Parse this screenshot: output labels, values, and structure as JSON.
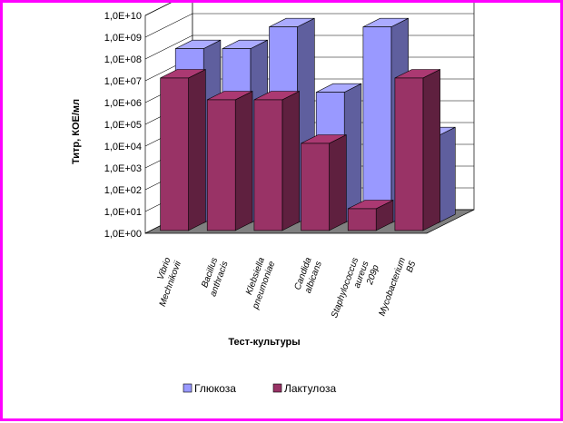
{
  "chart_data": {
    "type": "bar",
    "subtype": "3d-column-clustered",
    "title": "",
    "xlabel": "Тест-культуры",
    "ylabel": "Титр, КОЕ/мл",
    "yscale": "log",
    "ylim": [
      "1,0E+00",
      "1,0E+10"
    ],
    "yticks": [
      "1,0E+00",
      "1,0E+01",
      "1,0E+02",
      "1,0E+03",
      "1,0E+04",
      "1,0E+05",
      "1,0E+06",
      "1,0E+07",
      "1,0E+08",
      "1,0E+09",
      "1,0E+10"
    ],
    "categories": [
      [
        "Vibrio",
        "Mechnikovii"
      ],
      [
        "Bacillus",
        "anthracis"
      ],
      [
        "Klebsiella",
        "pneumoniae"
      ],
      [
        "Candida",
        "albicans"
      ],
      [
        "Staphylococcus",
        "aureus",
        "209р"
      ],
      [
        "Mycobacterium",
        "B5"
      ]
    ],
    "series": [
      {
        "name": "Глюкоза",
        "values": [
          100000000.0,
          100000000.0,
          1000000000.0,
          1000000.0,
          1000000000.0,
          10000.0
        ]
      },
      {
        "name": "Лактулоза",
        "values": [
          10000000.0,
          1000000.0,
          1000000.0,
          10000.0,
          10.0,
          10000000.0
        ]
      }
    ],
    "grid": true,
    "legend_position": "bottom",
    "colors": {
      "series0": "#9999ff",
      "series1": "#993366",
      "frame": "#ff00ff",
      "walls": "#ffffff",
      "floor": "#808080"
    }
  }
}
